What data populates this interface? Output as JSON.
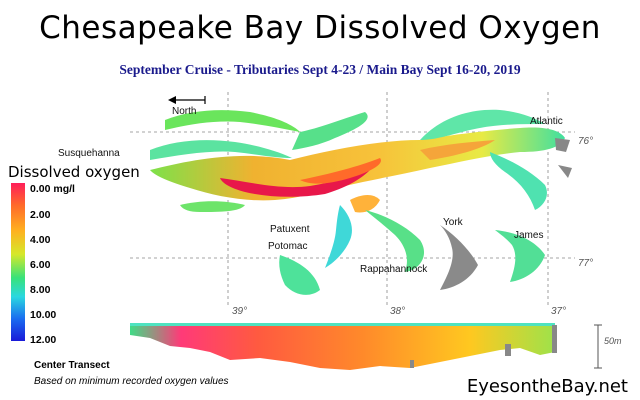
{
  "title": "Chesapeake Bay Dissolved Oxygen",
  "subtitle": "September Cruise - Tributaries Sept 4-23 / Main Bay Sept 16-20, 2019",
  "map": {
    "north_label": "North",
    "place_labels": [
      "Susquehanna",
      "Atlantic",
      "Patuxent",
      "Potomac",
      "York",
      "James",
      "Rappahannock"
    ],
    "longitude_labels": [
      "76°",
      "77°"
    ],
    "latitude_labels": [
      "39°",
      "38°",
      "37°"
    ],
    "colors": {
      "water_low": "#e8174a",
      "water_mid": "#ff9b1f",
      "water_high": "#38e08f",
      "land": "#ffffff"
    }
  },
  "legend": {
    "title": "Dissolved oxygen",
    "ticks": [
      "0.00 mg/l",
      "2.00",
      "4.00",
      "6.00",
      "8.00",
      "10.00",
      "12.00"
    ],
    "gradient_colors": [
      "#ff1e5a",
      "#ff6a2a",
      "#ffb020",
      "#d6e82a",
      "#38e27a",
      "#2ad8e0",
      "#1a6cf0",
      "#1a1ad8"
    ]
  },
  "transect": {
    "label": "Center Transect",
    "note": "Based on minimum recorded oxygen values",
    "depth_scale": "50m"
  },
  "credit": "EyesontheBay.net"
}
